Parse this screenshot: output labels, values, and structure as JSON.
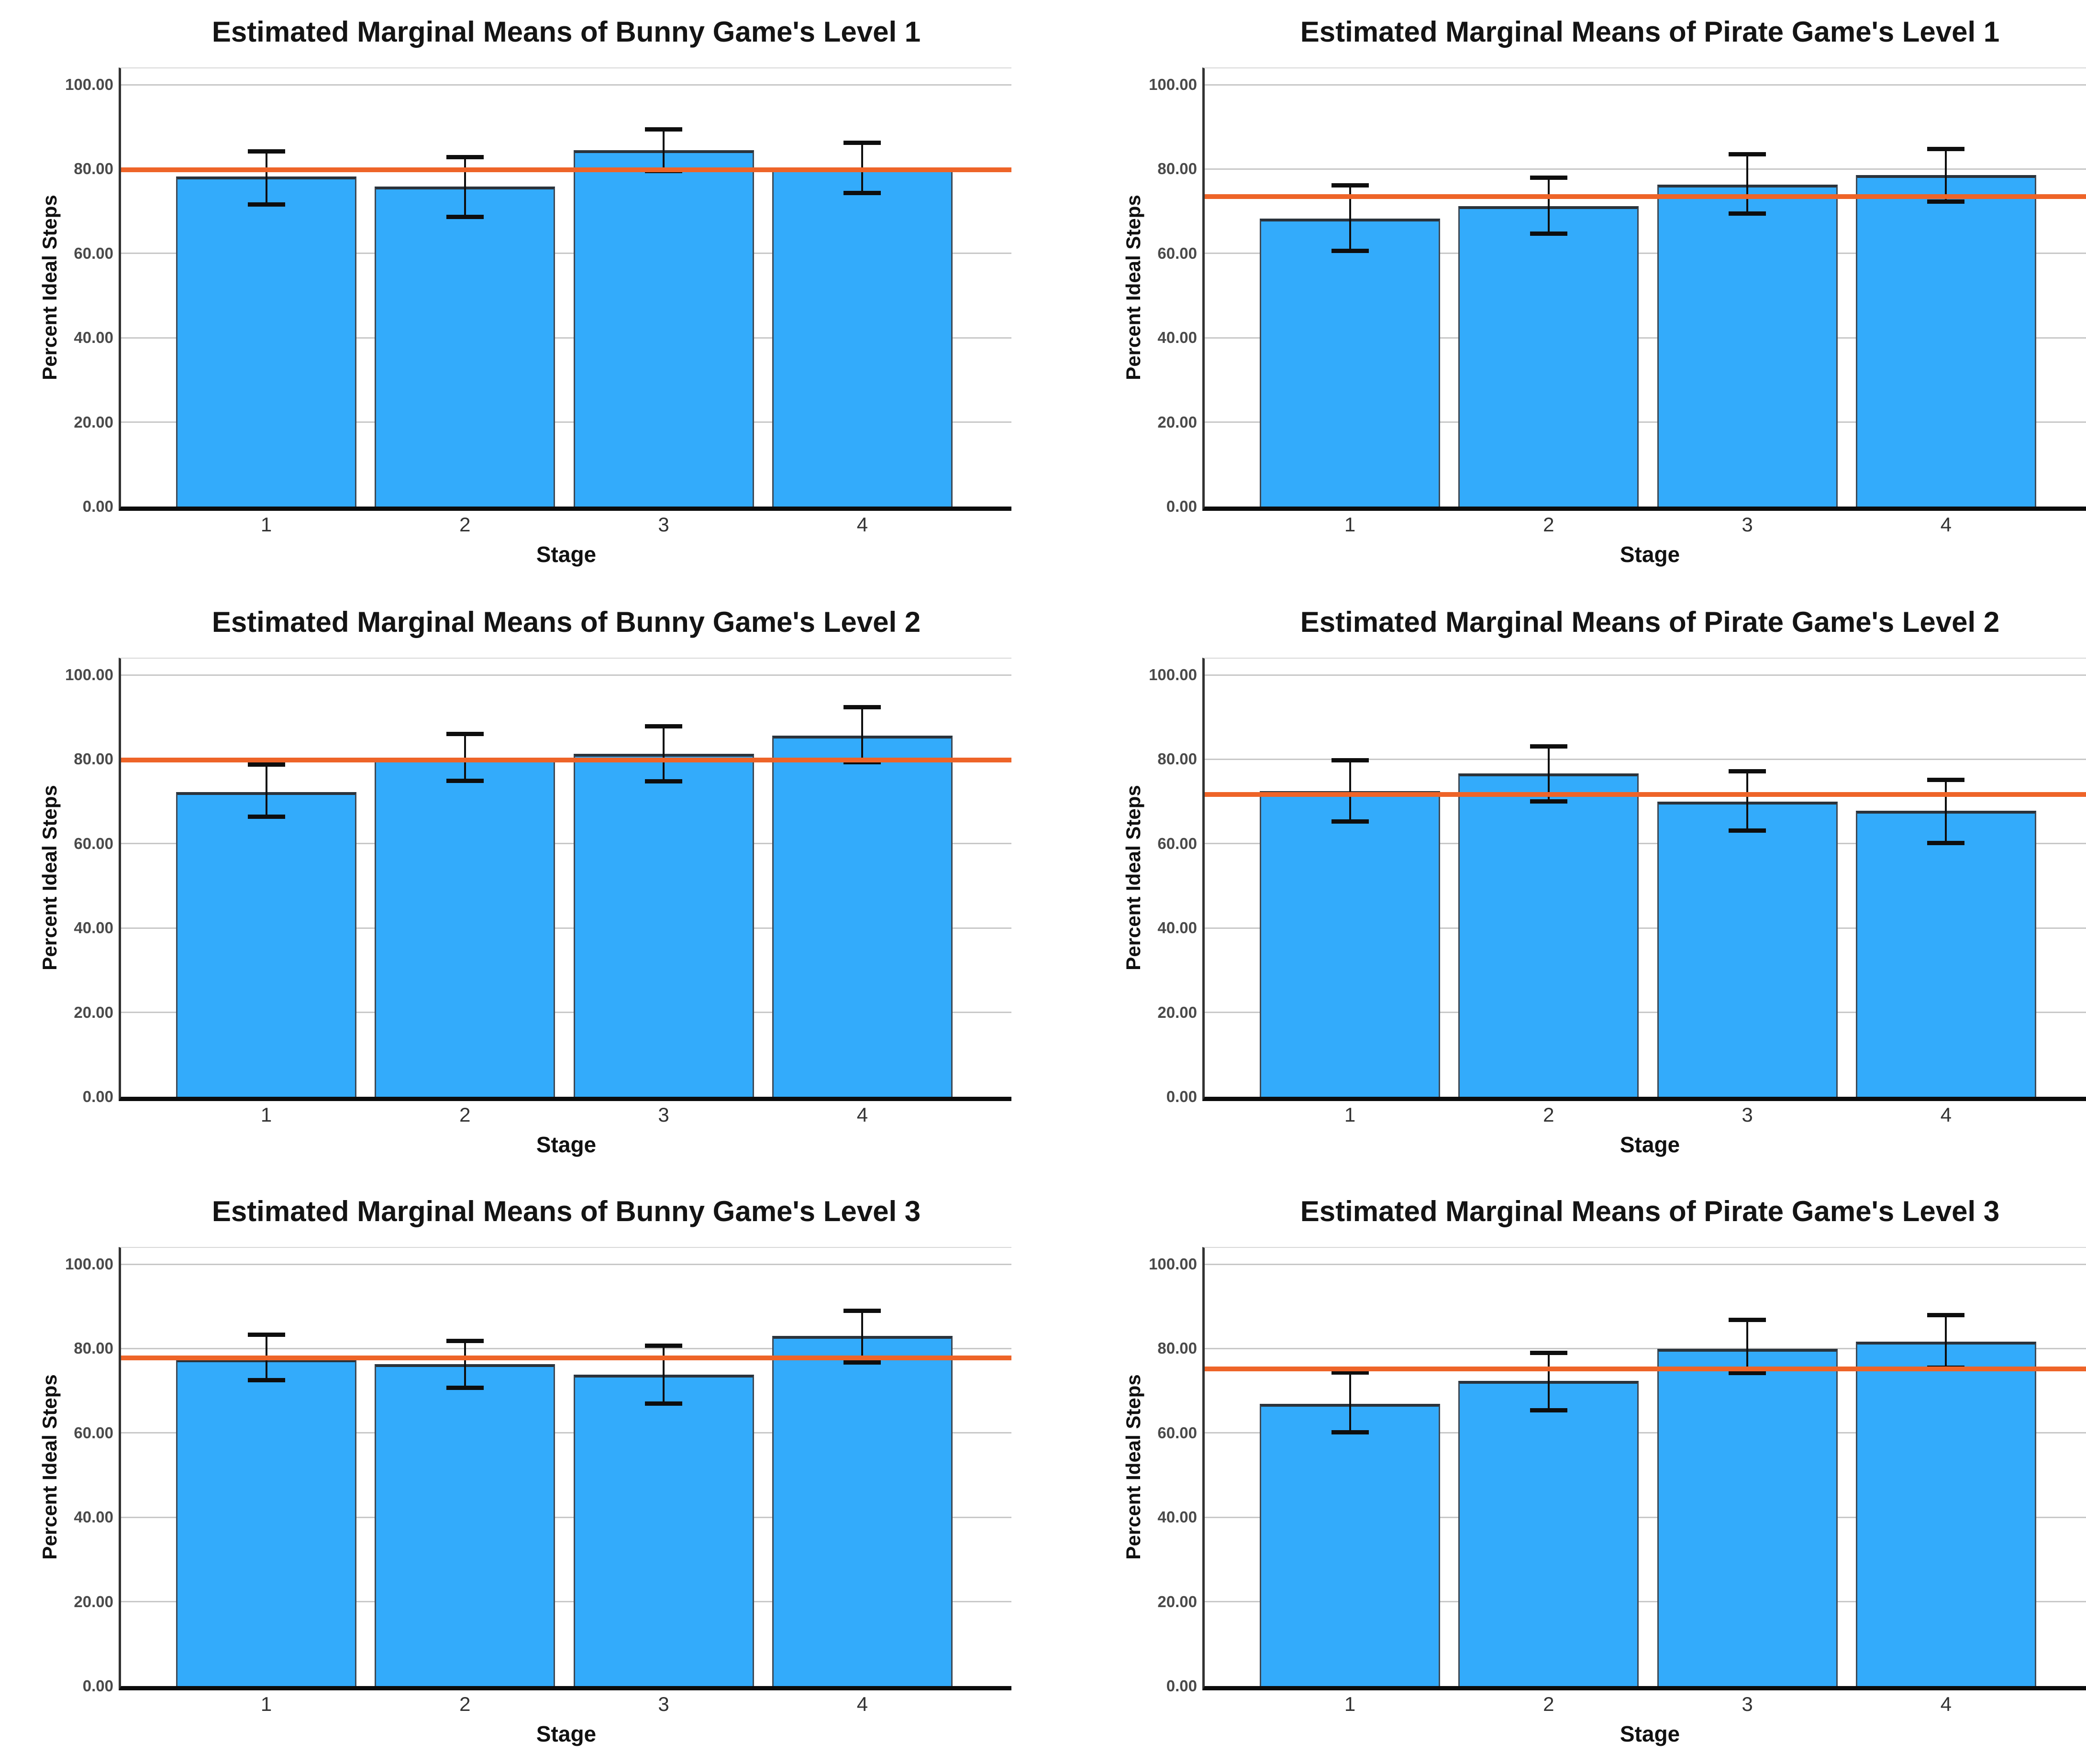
{
  "figure": {
    "background": "#ffffff",
    "layout": "2 columns x 3 rows of bar charts"
  },
  "shared": {
    "y_axis_label": "Percent Ideal Steps",
    "x_axis_label": "Stage",
    "y_tick_labels": [
      "0.00",
      "20.00",
      "40.00",
      "60.00",
      "80.00",
      "100.00"
    ],
    "x_tick_labels": [
      "1",
      "2",
      "3",
      "4"
    ],
    "colors": {
      "bar_fill": "#33ABFB",
      "bar_border": "#3D4955",
      "bar_border_top": "#2B333B",
      "error_bar": "#0E0E0E",
      "reference_line": "#EE6428",
      "gridline": "#C8C8C8",
      "axis_line": "#333333",
      "baseline": "#0C0C0C",
      "title_text": "#141414",
      "tick_text": "#4A4A4A",
      "x_tick_text": "#333333"
    }
  },
  "chart_data": [
    {
      "type": "bar",
      "title": "Estimated Marginal Means of Bunny Game's Level 1",
      "xlabel": "Stage",
      "ylabel": "Percent Ideal Steps",
      "categories": [
        "1",
        "2",
        "3",
        "4"
      ],
      "values": [
        78.2,
        75.8,
        84.5,
        80.3
      ],
      "error_low": [
        71.6,
        68.6,
        79.5,
        74.3
      ],
      "error_high": [
        84.2,
        82.8,
        89.4,
        86.2
      ],
      "reference_line": 79.8,
      "ylim": [
        0,
        100
      ],
      "yticks": [
        0,
        20,
        40,
        60,
        80,
        100
      ],
      "grid": true,
      "legend": false
    },
    {
      "type": "bar",
      "title": "Estimated Marginal Means of Pirate Game's Level 1",
      "xlabel": "Stage",
      "ylabel": "Percent Ideal Steps",
      "categories": [
        "1",
        "2",
        "3",
        "4"
      ],
      "values": [
        68.2,
        71.2,
        76.3,
        78.6
      ],
      "error_low": [
        60.6,
        64.7,
        69.4,
        72.3
      ],
      "error_high": [
        76.1,
        78.0,
        83.5,
        84.8
      ],
      "reference_line": 73.5,
      "ylim": [
        0,
        100
      ],
      "yticks": [
        0,
        20,
        40,
        60,
        80,
        100
      ],
      "grid": true,
      "legend": false
    },
    {
      "type": "bar",
      "title": "Estimated Marginal Means of Bunny Game's Level 2",
      "xlabel": "Stage",
      "ylabel": "Percent Ideal Steps",
      "categories": [
        "1",
        "2",
        "3",
        "4"
      ],
      "values": [
        72.2,
        80.3,
        81.3,
        85.6
      ],
      "error_low": [
        66.4,
        74.9,
        74.8,
        79.3
      ],
      "error_high": [
        78.7,
        86.0,
        87.8,
        92.4
      ],
      "reference_line": 79.8,
      "ylim": [
        0,
        100
      ],
      "yticks": [
        0,
        20,
        40,
        60,
        80,
        100
      ],
      "grid": true,
      "legend": false
    },
    {
      "type": "bar",
      "title": "Estimated Marginal Means of Pirate Game's Level 2",
      "xlabel": "Stage",
      "ylabel": "Percent Ideal Steps",
      "categories": [
        "1",
        "2",
        "3",
        "4"
      ],
      "values": [
        72.5,
        76.6,
        70.0,
        67.8
      ],
      "error_low": [
        65.2,
        70.0,
        63.1,
        60.2
      ],
      "error_high": [
        79.8,
        83.0,
        77.1,
        75.1
      ],
      "reference_line": 71.7,
      "ylim": [
        0,
        100
      ],
      "yticks": [
        0,
        20,
        40,
        60,
        80,
        100
      ],
      "grid": true,
      "legend": false
    },
    {
      "type": "bar",
      "title": "Estimated Marginal Means of Bunny Game's Level 3",
      "xlabel": "Stage",
      "ylabel": "Percent Ideal Steps",
      "categories": [
        "1",
        "2",
        "3",
        "4"
      ],
      "values": [
        77.4,
        76.3,
        73.8,
        83.0
      ],
      "error_low": [
        72.5,
        70.7,
        67.0,
        76.7
      ],
      "error_high": [
        83.3,
        81.8,
        80.7,
        88.9
      ],
      "reference_line": 77.8,
      "ylim": [
        0,
        100
      ],
      "yticks": [
        0,
        20,
        40,
        60,
        80,
        100
      ],
      "grid": true,
      "legend": false
    },
    {
      "type": "bar",
      "title": "Estimated Marginal Means of Pirate Game's Level 3",
      "xlabel": "Stage",
      "ylabel": "Percent Ideal Steps",
      "categories": [
        "1",
        "2",
        "3",
        "4"
      ],
      "values": [
        66.9,
        72.3,
        79.9,
        81.6
      ],
      "error_low": [
        60.2,
        65.4,
        74.2,
        75.5
      ],
      "error_high": [
        74.3,
        79.0,
        86.8,
        87.9
      ],
      "reference_line": 75.2,
      "ylim": [
        0,
        100
      ],
      "yticks": [
        0,
        20,
        40,
        60,
        80,
        100
      ],
      "grid": true,
      "legend": false
    }
  ]
}
